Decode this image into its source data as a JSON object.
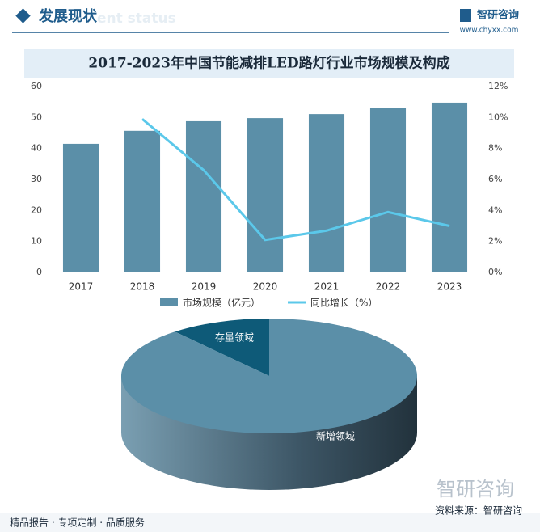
{
  "header": {
    "title": "发展现状",
    "subtitle": "ent status",
    "logo": "智研咨询",
    "url": "www.chyxx.com"
  },
  "chart_data": [
    {
      "type": "bar",
      "title": "2017-2023年中国节能减排LED路灯行业市场规模及构成",
      "categories": [
        "2017",
        "2018",
        "2019",
        "2020",
        "2021",
        "2022",
        "2023"
      ],
      "series": [
        {
          "name": "市场规模（亿元）",
          "color": "#5b8fa8",
          "values": [
            41.5,
            45.7,
            48.8,
            49.8,
            51.1,
            53.2,
            54.8
          ]
        },
        {
          "name": "同比增长（%）",
          "type": "line",
          "color": "#5bc8ea",
          "axis": "y2",
          "values": [
            null,
            9.9,
            6.6,
            2.1,
            2.7,
            3.9,
            3.0
          ]
        }
      ],
      "ylim": [
        0,
        60
      ],
      "yticks": [
        0,
        10,
        20,
        30,
        40,
        50,
        60
      ],
      "y2lim": [
        0,
        12
      ],
      "y2ticks": [
        {
          "value": 0,
          "label": "0%"
        },
        {
          "value": 2,
          "label": "2%"
        },
        {
          "value": 4,
          "label": "4%"
        },
        {
          "value": 6,
          "label": "6%"
        },
        {
          "value": 8,
          "label": "8%"
        },
        {
          "value": 10,
          "label": "10%"
        },
        {
          "value": 12,
          "label": "12%"
        }
      ]
    },
    {
      "type": "pie",
      "categories": [
        "存量领域",
        "新增领域"
      ],
      "values": [
        11,
        89
      ],
      "colors": [
        "#0e5a78",
        "#5b8fa8"
      ]
    }
  ],
  "footer": {
    "left": "精品报告 · 专项定制 · 品质服务",
    "source": "资料来源：智研咨询",
    "logo": "智研咨询"
  }
}
